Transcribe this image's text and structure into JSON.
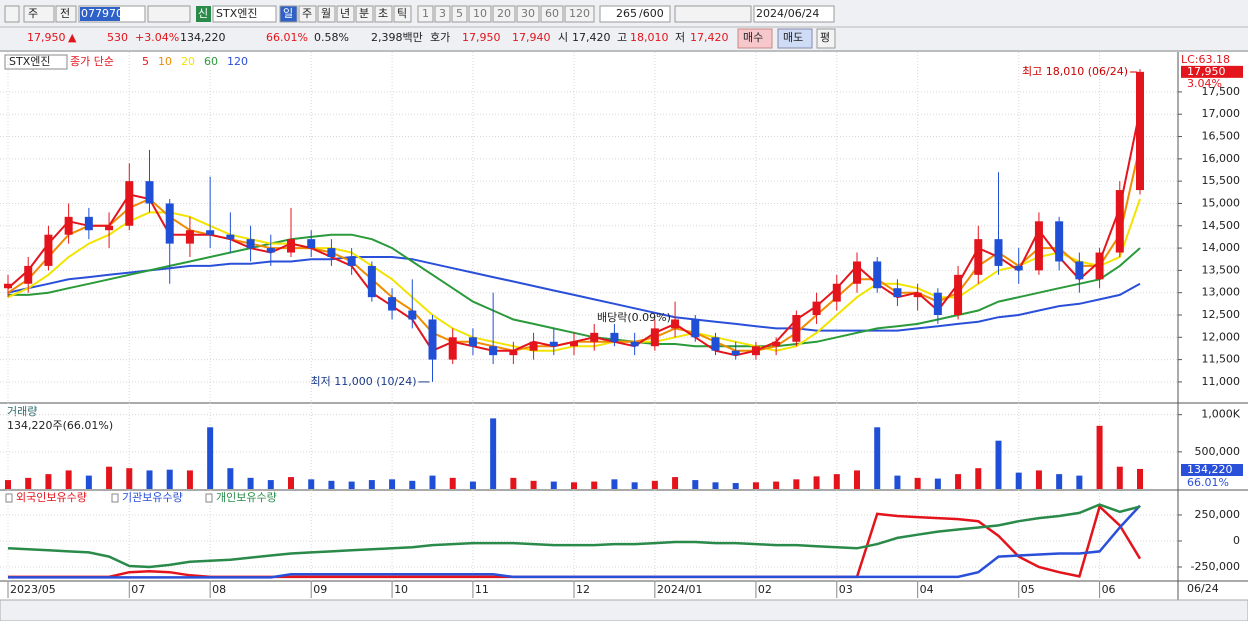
{
  "toolbar": {
    "market": "주",
    "prev": "전",
    "code": "077970",
    "new": "신",
    "name": "STX엔진",
    "periods": [
      "일",
      "주",
      "월",
      "년",
      "분",
      "초",
      "틱"
    ],
    "intervals": [
      "1",
      "3",
      "5",
      "10",
      "20",
      "30",
      "60",
      "120"
    ],
    "count": "265",
    "max": "/600",
    "date": "2024/06/24"
  },
  "quote": {
    "price": "17,950",
    "arrow": "▲",
    "change": "530",
    "change_pct": "+3.04%",
    "volume": "134,220",
    "volume_ratio": "66.01%",
    "turnover": "0.58%",
    "amount": "2,398백만",
    "ask_label": "호가",
    "ask": "17,950",
    "bid": "17,940",
    "open_label": "시",
    "open": "17,420",
    "high_label": "고",
    "high": "18,010",
    "low_label": "저",
    "low": "17,420",
    "buy": "매수",
    "sell": "매도",
    "avg": "평"
  },
  "chart_data": {
    "type": "candlestick",
    "legend_name": "STX엔진",
    "ma_label": "종가 단순",
    "categories": [
      "2023/05",
      null,
      null,
      null,
      null,
      null,
      "07",
      null,
      null,
      null,
      "08",
      null,
      null,
      null,
      null,
      "09",
      null,
      null,
      null,
      "10",
      null,
      null,
      null,
      "11",
      null,
      null,
      null,
      null,
      "12",
      null,
      null,
      null,
      "2024/01",
      null,
      null,
      null,
      null,
      "02",
      null,
      null,
      null,
      "03",
      null,
      null,
      null,
      "04",
      null,
      null,
      null,
      null,
      "05",
      null,
      null,
      null,
      "06",
      null,
      null
    ],
    "last_label": "06/24",
    "open": [
      13100,
      13200,
      13600,
      14300,
      14700,
      14400,
      14500,
      15500,
      15000,
      14100,
      14400,
      14300,
      14200,
      14000,
      13900,
      14200,
      14000,
      13800,
      13600,
      12900,
      12600,
      12400,
      11500,
      12000,
      11800,
      11600,
      11700,
      11900,
      11800,
      11900,
      12100,
      11900,
      11800,
      12200,
      12400,
      12000,
      11700,
      11600,
      11800,
      11900,
      12500,
      12800,
      13200,
      13700,
      13100,
      12900,
      13000,
      12500,
      13400,
      14200,
      13600,
      13500,
      14600,
      13700,
      13300,
      13900,
      15300
    ],
    "high": [
      13400,
      13800,
      14500,
      15000,
      14900,
      14800,
      15900,
      16200,
      15100,
      14700,
      15600,
      14800,
      14500,
      14300,
      14900,
      14400,
      14200,
      14000,
      13700,
      13100,
      13300,
      12500,
      12200,
      12200,
      13000,
      11900,
      12100,
      12200,
      12100,
      12300,
      12300,
      12100,
      12400,
      12800,
      12500,
      12100,
      11900,
      11900,
      12000,
      12600,
      13000,
      13400,
      13900,
      13800,
      13300,
      13200,
      13100,
      13600,
      14500,
      15700,
      14000,
      14800,
      14700,
      13900,
      14000,
      15500,
      18010
    ],
    "low": [
      12900,
      13000,
      13500,
      14100,
      14200,
      14000,
      14400,
      14800,
      13200,
      13800,
      14000,
      13900,
      13700,
      13600,
      13800,
      13800,
      13600,
      13400,
      12800,
      12400,
      12200,
      11000,
      11400,
      11600,
      11400,
      11400,
      11500,
      11600,
      11600,
      11700,
      11800,
      11600,
      11700,
      12000,
      11900,
      11600,
      11500,
      11500,
      11600,
      11800,
      12300,
      12600,
      13000,
      13000,
      12700,
      12600,
      12300,
      12400,
      13200,
      13400,
      13200,
      13400,
      13500,
      13000,
      13100,
      13800,
      15200
    ],
    "close": [
      13200,
      13600,
      14300,
      14700,
      14400,
      14500,
      15500,
      15000,
      14100,
      14400,
      14300,
      14200,
      14000,
      13900,
      14200,
      14000,
      13800,
      13600,
      12900,
      12600,
      12400,
      11500,
      12000,
      11800,
      11600,
      11700,
      11900,
      11800,
      11900,
      12100,
      11900,
      11800,
      12200,
      12400,
      12000,
      11700,
      11600,
      11800,
      11900,
      12500,
      12800,
      13200,
      13700,
      13100,
      12900,
      13000,
      12500,
      13400,
      14200,
      13600,
      13500,
      14600,
      13700,
      13300,
      13900,
      15300,
      17950
    ],
    "up_color": "#e3141c",
    "down_color": "#1f4fd6",
    "series": [
      {
        "name": "5",
        "color": "#e3141c",
        "values": [
          13100,
          13500,
          14100,
          14600,
          14500,
          14500,
          15200,
          15100,
          14300,
          14300,
          14300,
          14200,
          14000,
          13900,
          14100,
          14000,
          13800,
          13600,
          13000,
          12700,
          12400,
          11700,
          11900,
          11800,
          11700,
          11700,
          11900,
          11800,
          11900,
          12000,
          11900,
          11800,
          12100,
          12300,
          12000,
          11700,
          11600,
          11700,
          11900,
          12400,
          12700,
          13100,
          13600,
          13200,
          12900,
          13000,
          12600,
          13200,
          14000,
          13800,
          13500,
          14400,
          13800,
          13300,
          13700,
          14900,
          17100
        ]
      },
      {
        "name": "10",
        "color": "#f08c00",
        "values": [
          13000,
          13300,
          13800,
          14300,
          14500,
          14500,
          14900,
          15100,
          14700,
          14400,
          14300,
          14200,
          14100,
          14000,
          14000,
          14000,
          13900,
          13700,
          13300,
          12900,
          12600,
          12100,
          11900,
          11900,
          11800,
          11700,
          11800,
          11800,
          11900,
          11900,
          11900,
          11900,
          12000,
          12200,
          12100,
          11900,
          11700,
          11700,
          11800,
          12100,
          12500,
          12900,
          13300,
          13300,
          13000,
          13000,
          12800,
          13000,
          13600,
          13900,
          13600,
          14000,
          14000,
          13600,
          13600,
          14300,
          16300
        ]
      },
      {
        "name": "20",
        "color": "#f2e400",
        "values": [
          12900,
          13100,
          13400,
          13800,
          14100,
          14300,
          14600,
          14800,
          14800,
          14700,
          14500,
          14300,
          14200,
          14100,
          14100,
          14000,
          14000,
          13900,
          13600,
          13300,
          12900,
          12500,
          12200,
          12000,
          11900,
          11800,
          11700,
          11700,
          11800,
          11800,
          11900,
          11900,
          11900,
          12000,
          12100,
          12000,
          11900,
          11800,
          11700,
          11800,
          12100,
          12500,
          12900,
          13200,
          13200,
          13100,
          12900,
          12900,
          13200,
          13500,
          13600,
          13800,
          13900,
          13700,
          13600,
          13800,
          15100
        ]
      },
      {
        "name": "60",
        "color": "#2a9a3a",
        "values": [
          12950,
          12950,
          13000,
          13100,
          13200,
          13300,
          13400,
          13500,
          13600,
          13700,
          13800,
          13900,
          14000,
          14100,
          14200,
          14250,
          14300,
          14300,
          14200,
          14000,
          13700,
          13400,
          13100,
          12800,
          12600,
          12400,
          12300,
          12200,
          12100,
          12000,
          11950,
          11900,
          11850,
          11850,
          11800,
          11800,
          11800,
          11800,
          11800,
          11850,
          11900,
          12000,
          12100,
          12200,
          12250,
          12300,
          12400,
          12500,
          12600,
          12800,
          12900,
          13000,
          13100,
          13200,
          13300,
          13600,
          14000
        ]
      },
      {
        "name": "120",
        "color": "#2a4fd8",
        "values": [
          13000,
          13100,
          13200,
          13300,
          13350,
          13400,
          13450,
          13500,
          13550,
          13600,
          13600,
          13650,
          13650,
          13700,
          13700,
          13750,
          13750,
          13800,
          13800,
          13800,
          13750,
          13650,
          13550,
          13450,
          13350,
          13250,
          13150,
          13050,
          12950,
          12850,
          12750,
          12650,
          12550,
          12450,
          12400,
          12350,
          12300,
          12250,
          12200,
          12200,
          12150,
          12150,
          12150,
          12150,
          12150,
          12200,
          12250,
          12300,
          12350,
          12450,
          12500,
          12600,
          12700,
          12750,
          12850,
          12950,
          13200
        ]
      }
    ],
    "ylim": [
      10550,
      18350
    ],
    "yticks": [
      {
        "value": 11000,
        "label": "11,000"
      },
      {
        "value": 11500,
        "label": "11,500"
      },
      {
        "value": 12000,
        "label": "12,000"
      },
      {
        "value": 12500,
        "label": "12,500"
      },
      {
        "value": 13000,
        "label": "13,000"
      },
      {
        "value": 13500,
        "label": "13,500"
      },
      {
        "value": 14000,
        "label": "14,000"
      },
      {
        "value": 14500,
        "label": "14,500"
      },
      {
        "value": 15000,
        "label": "15,000"
      },
      {
        "value": 15500,
        "label": "15,500"
      },
      {
        "value": 16000,
        "label": "16,000"
      },
      {
        "value": 16500,
        "label": "16,500"
      },
      {
        "value": 17000,
        "label": "17,000"
      },
      {
        "value": 17500,
        "label": "17,500"
      }
    ],
    "grid": true,
    "high_note": "최고 18,010 (06/24)",
    "low_note": "최저 11,000 (10/24)",
    "event_note": "배당락(0.09%)",
    "lc_label": "LC:63.18",
    "price_label": "17,950",
    "pct_label": "3.04%",
    "volume": {
      "title": "거래량",
      "subtitle": "134,220주(66.01%)",
      "values": [
        120000,
        150000,
        200000,
        250000,
        180000,
        300000,
        280000,
        250000,
        260000,
        250000,
        830000,
        280000,
        150000,
        120000,
        160000,
        130000,
        110000,
        100000,
        120000,
        130000,
        110000,
        180000,
        150000,
        100000,
        950000,
        150000,
        110000,
        100000,
        90000,
        100000,
        130000,
        90000,
        110000,
        160000,
        120000,
        90000,
        80000,
        90000,
        100000,
        130000,
        170000,
        200000,
        250000,
        830000,
        180000,
        150000,
        140000,
        200000,
        280000,
        650000,
        220000,
        250000,
        200000,
        180000,
        850000,
        300000,
        270000
      ],
      "ylim": [
        0,
        1130000
      ],
      "yticks": [
        {
          "value": 500000,
          "label": "500,000"
        },
        {
          "value": 1000000,
          "label": "1,000K"
        }
      ],
      "last_label": "134,220",
      "ratio_label": "66.01%"
    },
    "holdings": {
      "series": [
        {
          "name": "외국인보유수량",
          "color": "#e3141c",
          "values": [
            -345000,
            -345000,
            -345000,
            -345000,
            -345000,
            -345000,
            -300000,
            -290000,
            -300000,
            -330000,
            -345000,
            -345000,
            -345000,
            -345000,
            -345000,
            -345000,
            -345000,
            -345000,
            -345000,
            -345000,
            -345000,
            -345000,
            -345000,
            -345000,
            -345000,
            -345000,
            -345000,
            -345000,
            -345000,
            -345000,
            -345000,
            -345000,
            -345000,
            -345000,
            -345000,
            -345000,
            -345000,
            -345000,
            -345000,
            -345000,
            -345000,
            -345000,
            -345000,
            260000,
            240000,
            230000,
            220000,
            210000,
            190000,
            50000,
            -150000,
            -250000,
            -300000,
            -340000,
            330000,
            150000,
            -170000
          ]
        },
        {
          "name": "기관보유수량",
          "color": "#2a4fd8",
          "values": [
            -350000,
            -350000,
            -350000,
            -350000,
            -350000,
            -350000,
            -350000,
            -350000,
            -350000,
            -350000,
            -350000,
            -350000,
            -350000,
            -350000,
            -320000,
            -320000,
            -320000,
            -320000,
            -320000,
            -320000,
            -320000,
            -320000,
            -320000,
            -320000,
            -320000,
            -345000,
            -345000,
            -345000,
            -345000,
            -345000,
            -345000,
            -345000,
            -345000,
            -345000,
            -345000,
            -345000,
            -345000,
            -345000,
            -345000,
            -345000,
            -345000,
            -345000,
            -345000,
            -345000,
            -345000,
            -345000,
            -345000,
            -345000,
            -300000,
            -150000,
            -140000,
            -130000,
            -120000,
            -120000,
            -100000,
            130000,
            340000
          ]
        },
        {
          "name": "개인보유수량",
          "color": "#2a8a4a",
          "values": [
            -70000,
            -80000,
            -90000,
            -100000,
            -110000,
            -150000,
            -240000,
            -250000,
            -230000,
            -200000,
            -190000,
            -180000,
            -160000,
            -140000,
            -120000,
            -110000,
            -100000,
            -90000,
            -80000,
            -70000,
            -60000,
            -40000,
            -30000,
            -20000,
            -20000,
            -20000,
            -30000,
            -40000,
            -40000,
            -40000,
            -30000,
            -30000,
            -20000,
            -10000,
            -10000,
            -20000,
            -20000,
            -30000,
            -40000,
            -40000,
            -50000,
            -60000,
            -70000,
            -30000,
            30000,
            60000,
            90000,
            110000,
            130000,
            150000,
            190000,
            220000,
            240000,
            270000,
            350000,
            280000,
            330000
          ]
        }
      ],
      "ylim": [
        -375000,
        490000
      ],
      "yticks": [
        {
          "value": -250000,
          "label": "-250,000"
        },
        0,
        {
          "value": 250000,
          "label": "250,000"
        }
      ]
    }
  }
}
